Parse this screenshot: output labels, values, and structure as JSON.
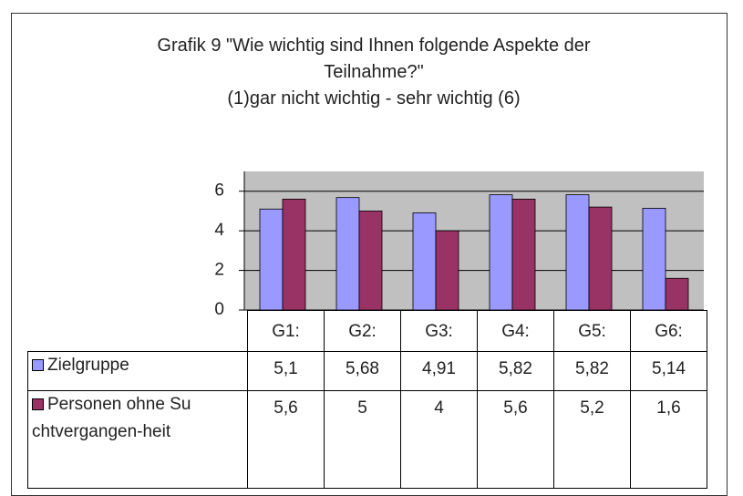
{
  "chart_data": {
    "type": "bar",
    "title": "Grafik 9  \"Wie wichtig sind Ihnen folgende Aspekte der Teilnahme?\"",
    "subtitle": "(1)gar nicht wichtig - sehr wichtig (6)",
    "categories": [
      "G1:",
      "G2:",
      "G3:",
      "G4:",
      "G5:",
      "G6:"
    ],
    "series": [
      {
        "name": "Zielgruppe",
        "color": "#9999ff",
        "values": [
          5.1,
          5.68,
          4.91,
          5.82,
          5.82,
          5.14
        ],
        "value_labels": [
          "5,1",
          "5,68",
          "4,91",
          "5,82",
          "5,82",
          "5,14"
        ]
      },
      {
        "name": "Personen ohne Suchtvergangen-heit",
        "color": "#993366",
        "values": [
          5.6,
          5,
          4,
          5.6,
          5.2,
          1.6
        ],
        "value_labels": [
          "5,6",
          "5",
          "4",
          "5,6",
          "5,2",
          "1,6"
        ]
      }
    ],
    "ylim": [
      0,
      7
    ],
    "yticks": [
      0,
      2,
      4,
      6
    ],
    "grid": true
  }
}
